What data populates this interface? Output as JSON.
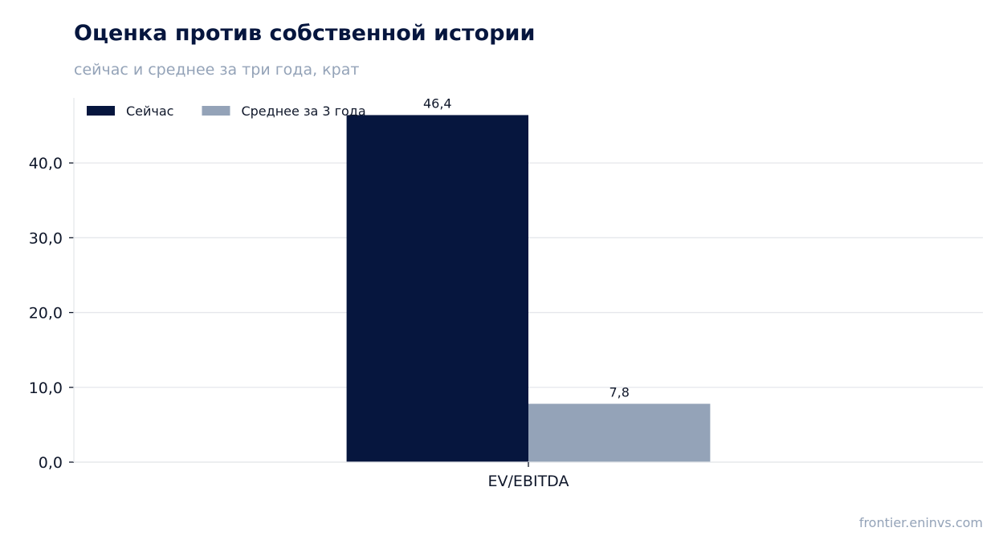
{
  "chart_data": {
    "type": "bar",
    "title": "Оценка против собственной истории",
    "subtitle": "сейчас и среднее за три года, крат",
    "categories": [
      "EV/EBITDA"
    ],
    "series": [
      {
        "name": "Сейчас",
        "values": [
          46.4
        ],
        "labels": [
          "46,4"
        ],
        "color": "#06163e"
      },
      {
        "name": "Среднее за 3 года",
        "values": [
          7.8
        ],
        "labels": [
          "7,8"
        ],
        "color": "#94a3b8"
      }
    ],
    "ylim": [
      0,
      48.7
    ],
    "yticks": [
      0,
      10,
      20,
      30,
      40
    ],
    "ytick_labels": [
      "0,0",
      "10,0",
      "20,0",
      "30,0",
      "40,0"
    ],
    "grid": true,
    "legend": "top-left",
    "xlabel": "",
    "ylabel": ""
  },
  "footer": {
    "source": "frontier.eninvs.com"
  }
}
